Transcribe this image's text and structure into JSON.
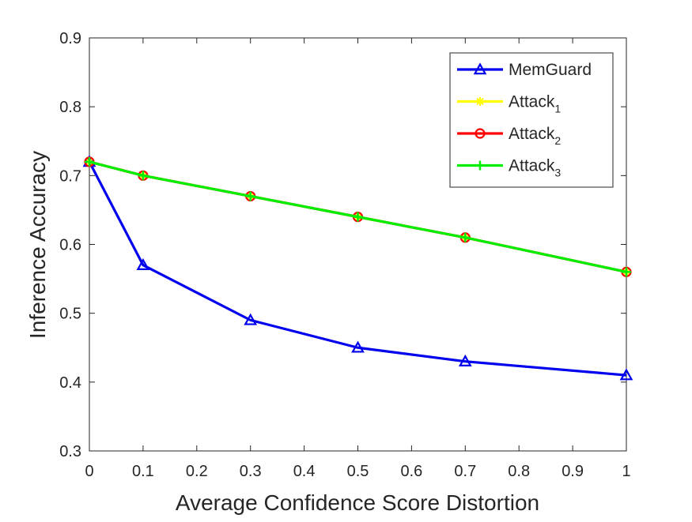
{
  "chart_data": {
    "type": "line",
    "title": "",
    "xlabel": "Average Confidence Score Distortion",
    "ylabel": "Inference Accuracy",
    "xlim": [
      0,
      1
    ],
    "ylim": [
      0.3,
      0.9
    ],
    "x_ticks": [
      "0",
      "0.1",
      "0.2",
      "0.3",
      "0.4",
      "0.5",
      "0.6",
      "0.7",
      "0.8",
      "0.9",
      "1"
    ],
    "y_ticks": [
      "0.3",
      "0.4",
      "0.5",
      "0.6",
      "0.7",
      "0.8",
      "0.9"
    ],
    "grid": false,
    "box": true,
    "legend_position": "top-right",
    "x": [
      0,
      0.1,
      0.3,
      0.5,
      0.7,
      1
    ],
    "series": [
      {
        "name": "MemGuard",
        "name_base": "MemGuard",
        "name_sub": "",
        "color": "#0000ee",
        "marker": "triangle",
        "values": [
          0.72,
          0.57,
          0.49,
          0.45,
          0.43,
          0.41
        ]
      },
      {
        "name": "Attack1",
        "name_base": "Attack",
        "name_sub": "1",
        "color": "#ffff00",
        "marker": "asterisk",
        "values": [
          0.72,
          0.7,
          0.67,
          0.64,
          0.61,
          0.56
        ]
      },
      {
        "name": "Attack2",
        "name_base": "Attack",
        "name_sub": "2",
        "color": "#ff0000",
        "marker": "circle",
        "values": [
          0.72,
          0.7,
          0.67,
          0.64,
          0.61,
          0.56
        ]
      },
      {
        "name": "Attack3",
        "name_base": "Attack",
        "name_sub": "3",
        "color": "#00ee00",
        "marker": "plus",
        "values": [
          0.72,
          0.7,
          0.67,
          0.64,
          0.61,
          0.56
        ]
      }
    ]
  }
}
